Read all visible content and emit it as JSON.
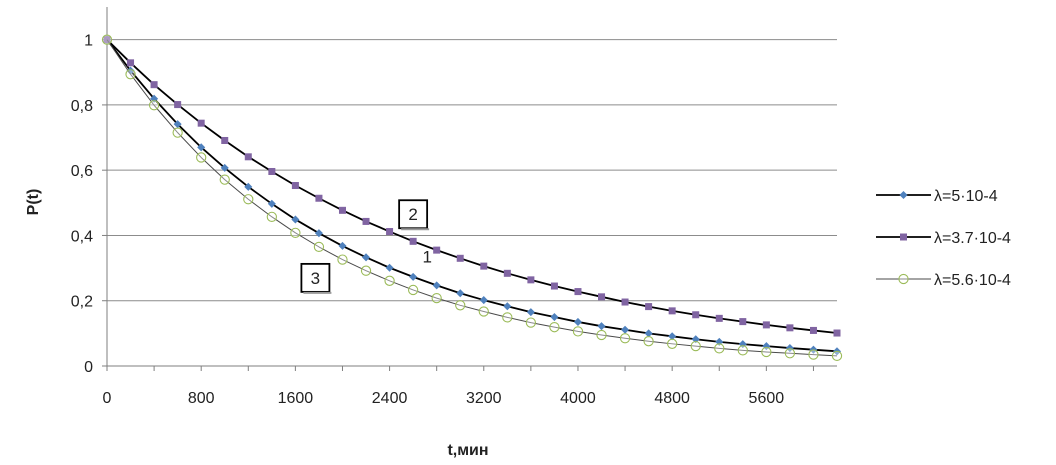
{
  "chart_data": {
    "type": "line",
    "xlabel": "t,мин",
    "ylabel": "P(t)",
    "xlim": [
      0,
      6200
    ],
    "ylim": [
      0,
      1.1
    ],
    "x_ticks": [
      0,
      800,
      1600,
      2400,
      3200,
      4000,
      4800,
      5600
    ],
    "x_tick_labels": [
      "0",
      "800",
      "1600",
      "2400",
      "3200",
      "4000",
      "4800",
      "5600"
    ],
    "y_ticks": [
      0,
      0.2,
      0.4,
      0.6,
      0.8,
      1
    ],
    "y_tick_labels": [
      "0",
      "0,2",
      "0,4",
      "0,6",
      "0,8",
      "1"
    ],
    "grid": "horizontal",
    "legend_position": "right",
    "x": [
      0,
      200,
      400,
      600,
      800,
      1000,
      1200,
      1400,
      1600,
      1800,
      2000,
      2200,
      2400,
      2600,
      2800,
      3000,
      3200,
      3400,
      3600,
      3800,
      4000,
      4200,
      4400,
      4600,
      4800,
      5000,
      5200,
      5400,
      5600,
      5800,
      6000,
      6200
    ],
    "series": [
      {
        "name": "λ=5·10-4",
        "color": "#4f81bd",
        "marker": "diamond",
        "values": [
          1,
          0.905,
          0.819,
          0.741,
          0.67,
          0.607,
          0.549,
          0.497,
          0.449,
          0.407,
          0.368,
          0.333,
          0.301,
          0.273,
          0.247,
          0.223,
          0.202,
          0.183,
          0.165,
          0.15,
          0.135,
          0.122,
          0.111,
          0.1,
          0.091,
          0.082,
          0.074,
          0.067,
          0.061,
          0.055,
          0.05,
          0.045
        ]
      },
      {
        "name": "λ=3.7·10-4",
        "color": "#8064a2",
        "marker": "square",
        "values": [
          1,
          0.929,
          0.862,
          0.801,
          0.744,
          0.691,
          0.641,
          0.596,
          0.553,
          0.514,
          0.477,
          0.443,
          0.412,
          0.382,
          0.355,
          0.33,
          0.306,
          0.284,
          0.264,
          0.245,
          0.228,
          0.212,
          0.196,
          0.182,
          0.169,
          0.157,
          0.146,
          0.136,
          0.126,
          0.117,
          0.109,
          0.101
        ]
      },
      {
        "name": "λ=5.6·10-4",
        "color": "#9bbb59",
        "marker": "circle",
        "values": [
          1,
          0.894,
          0.799,
          0.715,
          0.639,
          0.571,
          0.511,
          0.457,
          0.408,
          0.365,
          0.326,
          0.292,
          0.261,
          0.233,
          0.208,
          0.186,
          0.167,
          0.149,
          0.133,
          0.119,
          0.106,
          0.095,
          0.085,
          0.076,
          0.068,
          0.061,
          0.054,
          0.048,
          0.043,
          0.039,
          0.035,
          0.031
        ]
      }
    ],
    "annotations": [
      {
        "text": "2",
        "boxed": true,
        "x": 2600,
        "y": 0.465
      },
      {
        "text": "1",
        "boxed": false,
        "x": 2720,
        "y": 0.335
      },
      {
        "text": "3",
        "boxed": true,
        "x": 1770,
        "y": 0.27
      }
    ]
  }
}
